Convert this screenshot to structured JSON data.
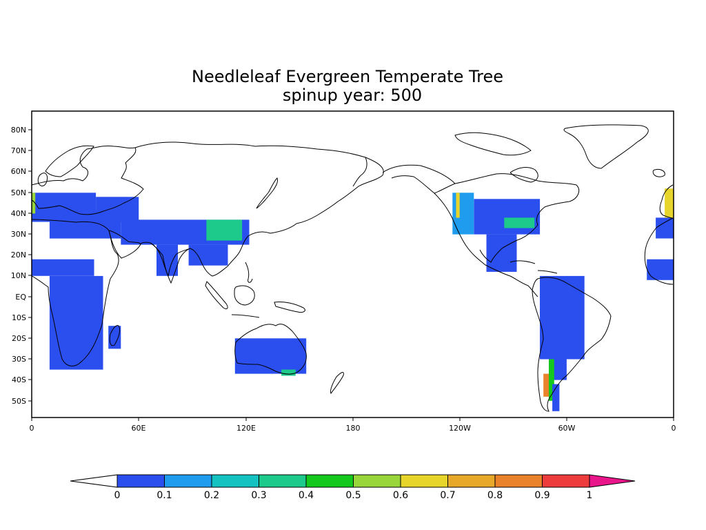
{
  "map": {
    "title": "Needleleaf Evergreen Temperate Tree",
    "subtitle": "spinup year: 500",
    "x_ticks": [
      "0",
      "60E",
      "120E",
      "180",
      "120W",
      "60W",
      "0"
    ],
    "y_ticks": [
      "80N",
      "70N",
      "60N",
      "50N",
      "40N",
      "30N",
      "20N",
      "10N",
      "EQ",
      "10S",
      "20S",
      "30S",
      "40S",
      "50S"
    ]
  },
  "colorbar": {
    "labels": [
      "0",
      "0.1",
      "0.2",
      "0.3",
      "0.4",
      "0.5",
      "0.6",
      "0.7",
      "0.8",
      "0.9",
      "1"
    ],
    "colors": [
      "#2b4fee",
      "#1f9cee",
      "#14c2c2",
      "#1ec98c",
      "#15c81e",
      "#99d63b",
      "#e8d52b",
      "#e8a92b",
      "#ea812b",
      "#ee3b3b"
    ],
    "over_color": "#e8168a",
    "under_color": "#ffffff"
  },
  "chart_data": {
    "type": "heatmap",
    "projection": "cylindrical equidistant, 0 to 360 longitude",
    "xlim": [
      0,
      360
    ],
    "ylim": [
      -57,
      90
    ],
    "colorbar_range": [
      0,
      1
    ],
    "field": "Needleleaf Evergreen Temperate Tree fraction",
    "cells": [
      {
        "lon": [
          0,
          36
        ],
        "lat": [
          36,
          50
        ],
        "value": 0.05
      },
      {
        "lon": [
          36,
          60
        ],
        "lat": [
          36,
          48
        ],
        "value": 0.05
      },
      {
        "lon": [
          0,
          2
        ],
        "lat": [
          40,
          50
        ],
        "value": 0.55
      },
      {
        "lon": [
          10,
          50
        ],
        "lat": [
          28,
          42
        ],
        "value": 0.05
      },
      {
        "lon": [
          50,
          122
        ],
        "lat": [
          25,
          37
        ],
        "value": 0.05
      },
      {
        "lon": [
          98,
          118
        ],
        "lat": [
          27,
          37
        ],
        "value": 0.3
      },
      {
        "lon": [
          70,
          82
        ],
        "lat": [
          10,
          25
        ],
        "value": 0.05
      },
      {
        "lon": [
          88,
          110
        ],
        "lat": [
          15,
          25
        ],
        "value": 0.05
      },
      {
        "lon": [
          0,
          35
        ],
        "lat": [
          10,
          18
        ],
        "value": 0.05
      },
      {
        "lon": [
          10,
          40
        ],
        "lat": [
          -35,
          10
        ],
        "value": 0.05
      },
      {
        "lon": [
          43,
          50
        ],
        "lat": [
          -25,
          -14
        ],
        "value": 0.05
      },
      {
        "lon": [
          114,
          154
        ],
        "lat": [
          -37,
          -20
        ],
        "value": 0.05
      },
      {
        "lon": [
          140,
          148
        ],
        "lat": [
          -38,
          -35
        ],
        "value": 0.3
      },
      {
        "lon": [
          236,
          248
        ],
        "lat": [
          30,
          50
        ],
        "value": 0.1
      },
      {
        "lon": [
          238,
          240
        ],
        "lat": [
          38,
          50
        ],
        "value": 0.6
      },
      {
        "lon": [
          248,
          285
        ],
        "lat": [
          30,
          47
        ],
        "value": 0.05
      },
      {
        "lon": [
          265,
          282
        ],
        "lat": [
          33,
          38
        ],
        "value": 0.3
      },
      {
        "lon": [
          255,
          272
        ],
        "lat": [
          12,
          30
        ],
        "value": 0.05
      },
      {
        "lon": [
          285,
          310
        ],
        "lat": [
          -30,
          10
        ],
        "value": 0.05
      },
      {
        "lon": [
          290,
          300
        ],
        "lat": [
          -40,
          -30
        ],
        "value": 0.05
      },
      {
        "lon": [
          287,
          290
        ],
        "lat": [
          -48,
          -37
        ],
        "value": 0.85
      },
      {
        "lon": [
          290,
          293
        ],
        "lat": [
          -50,
          -30
        ],
        "value": 0.4
      },
      {
        "lon": [
          292,
          296
        ],
        "lat": [
          -55,
          -42
        ],
        "value": 0.05
      },
      {
        "lon": [
          345,
          360
        ],
        "lat": [
          8,
          18
        ],
        "value": 0.05
      },
      {
        "lon": [
          350,
          360
        ],
        "lat": [
          28,
          38
        ],
        "value": 0.05
      },
      {
        "lon": [
          355,
          360
        ],
        "lat": [
          38,
          52
        ],
        "value": 0.6
      }
    ]
  }
}
